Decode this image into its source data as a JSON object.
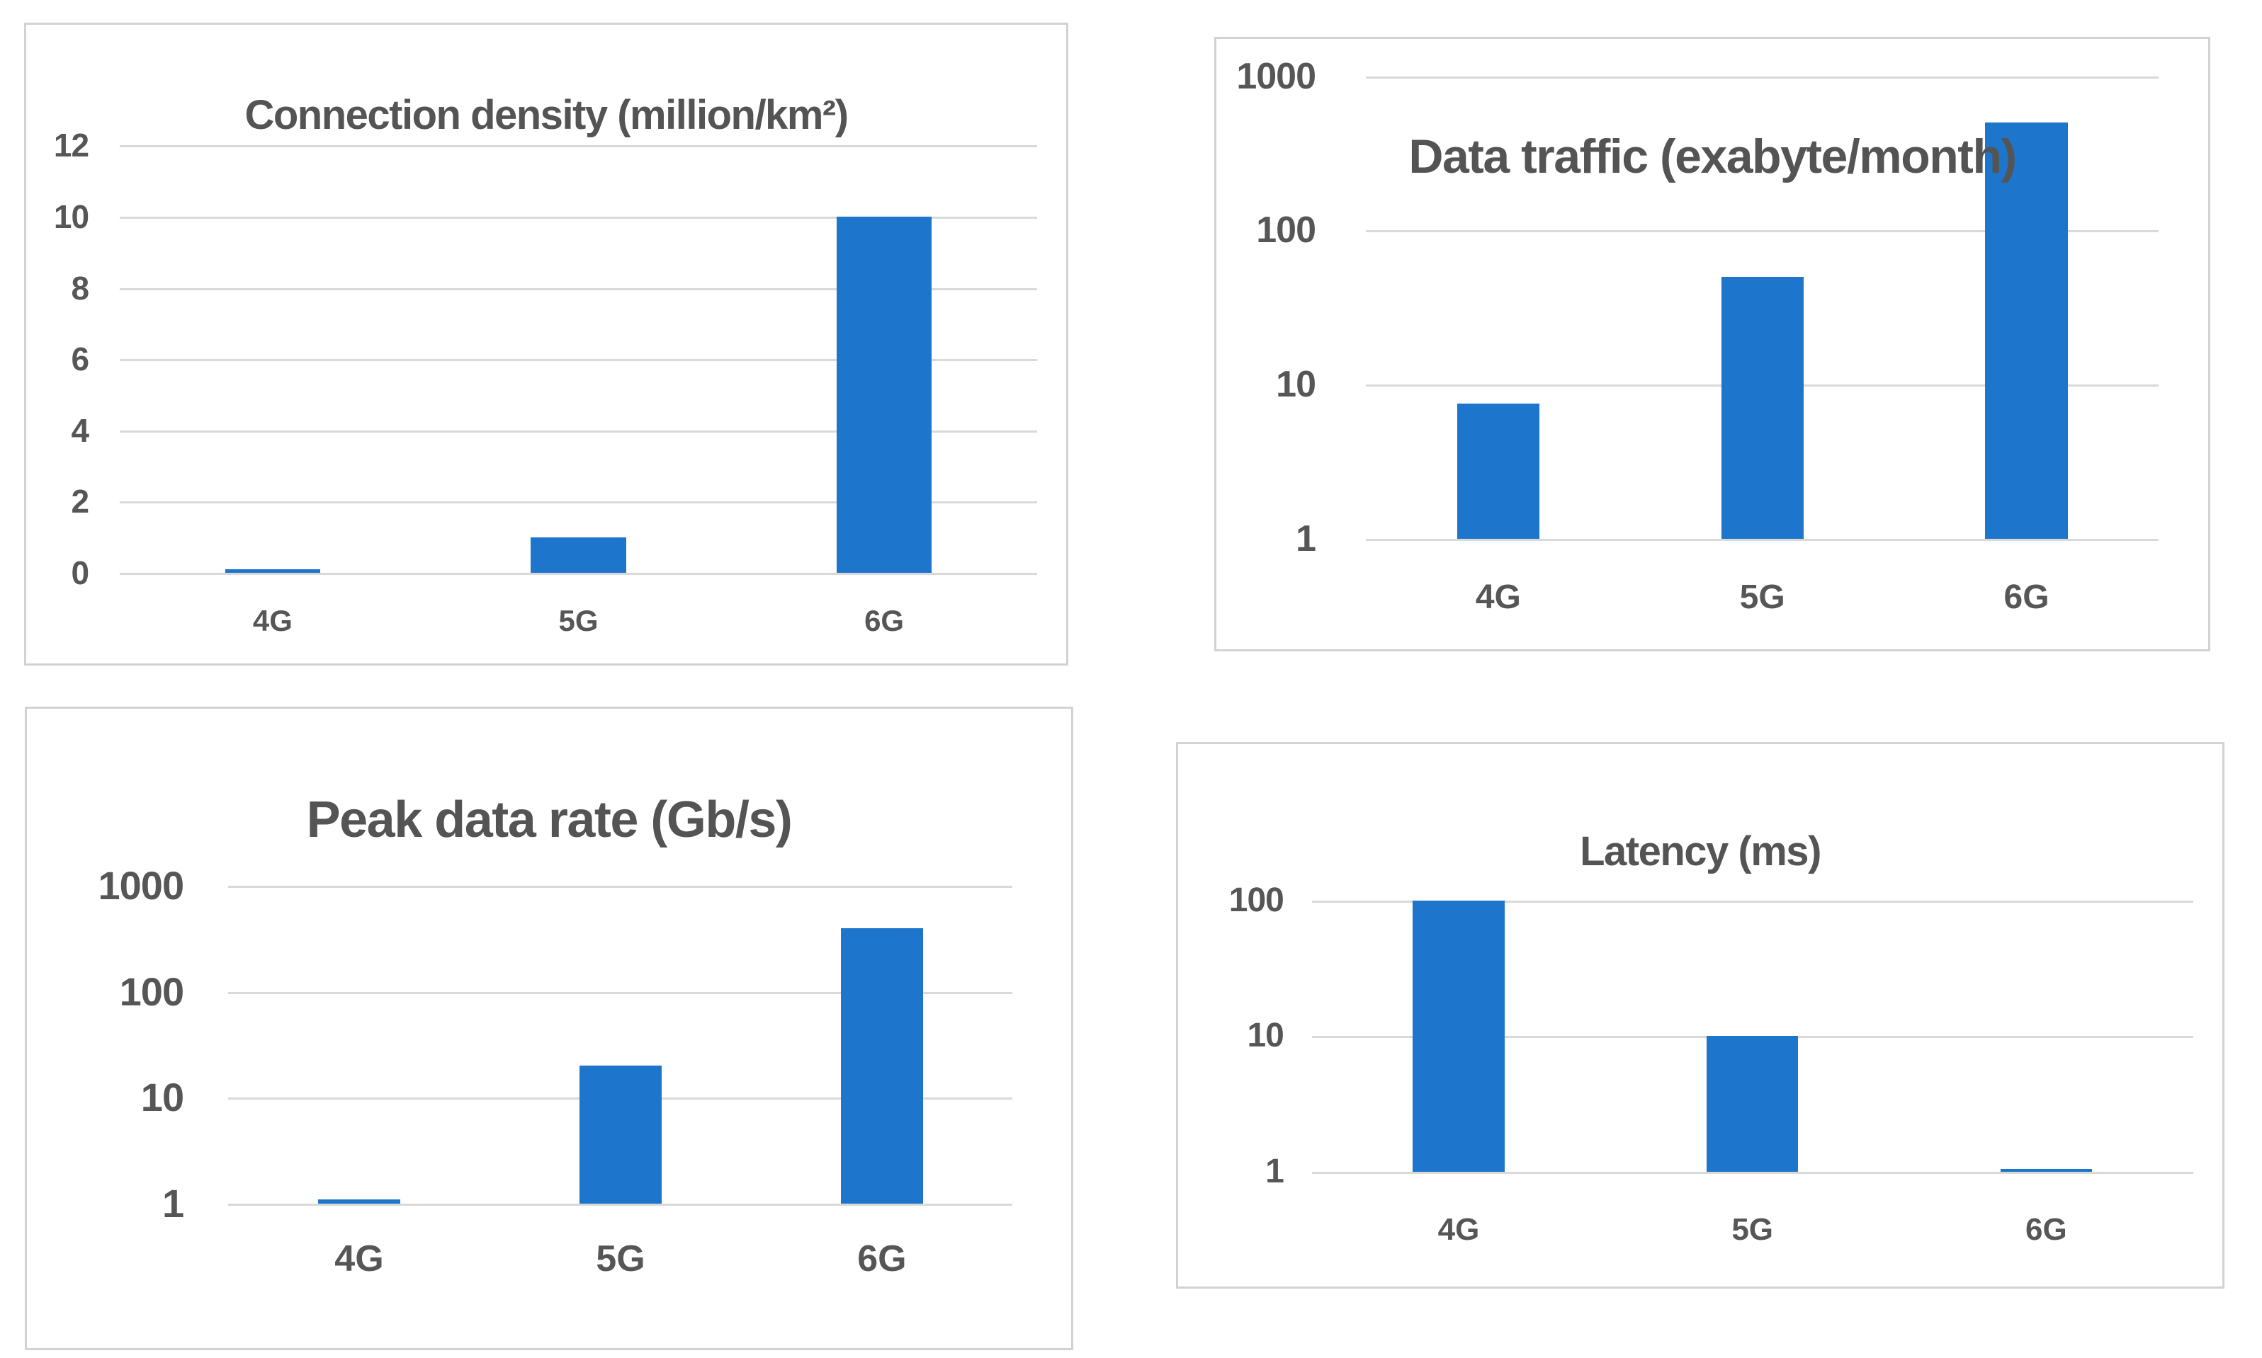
{
  "figure": {
    "description": "Comparison of 4G, 5G and 6G network key performance indicators",
    "panel_titles": [
      "Connection density (million/km²)",
      "Data traffic (exabyte/month)",
      "Peak data rate (Gb/s)",
      "Latency (ms)"
    ]
  },
  "colors": {
    "bar": "#1e75cc",
    "gridline": "#d9d9d9",
    "text": "#565656",
    "title_text": "#545454",
    "panel_border": "#d2d2d2",
    "background": "#ffffff"
  },
  "chart_data": [
    {
      "id": "connection-density",
      "type": "bar",
      "title": "Connection density (million/km²)",
      "categories": [
        "4G",
        "5G",
        "6G"
      ],
      "values": [
        0.1,
        1,
        10
      ],
      "scale": "linear",
      "ylim": [
        0,
        12
      ],
      "yticks": [
        0,
        2,
        4,
        6,
        8,
        10,
        12
      ],
      "grid": true,
      "legend": "none",
      "bar_color": "#1e75cc"
    },
    {
      "id": "data-traffic",
      "type": "bar",
      "title": "Data traffic (exabyte/month)",
      "categories": [
        "4G",
        "5G",
        "6G"
      ],
      "values": [
        7.5,
        50,
        500
      ],
      "scale": "log",
      "ylim": [
        1,
        1000
      ],
      "yticks": [
        1,
        10,
        100,
        1000
      ],
      "grid": true,
      "legend": "none",
      "bar_color": "#1e75cc"
    },
    {
      "id": "peak-data-rate",
      "type": "bar",
      "title": "Peak data rate (Gb/s)",
      "categories": [
        "4G",
        "5G",
        "6G"
      ],
      "values": [
        1.1,
        20,
        400
      ],
      "scale": "log",
      "ylim": [
        1,
        1000
      ],
      "yticks": [
        1,
        10,
        100,
        1000
      ],
      "grid": true,
      "legend": "none",
      "bar_color": "#1e75cc"
    },
    {
      "id": "latency",
      "type": "bar",
      "title": "Latency (ms)",
      "categories": [
        "4G",
        "5G",
        "6G"
      ],
      "values": [
        100,
        10,
        1.05
      ],
      "scale": "log",
      "ylim": [
        1,
        100
      ],
      "yticks": [
        1,
        10,
        100
      ],
      "grid": true,
      "legend": "none",
      "bar_color": "#1e75cc"
    }
  ]
}
